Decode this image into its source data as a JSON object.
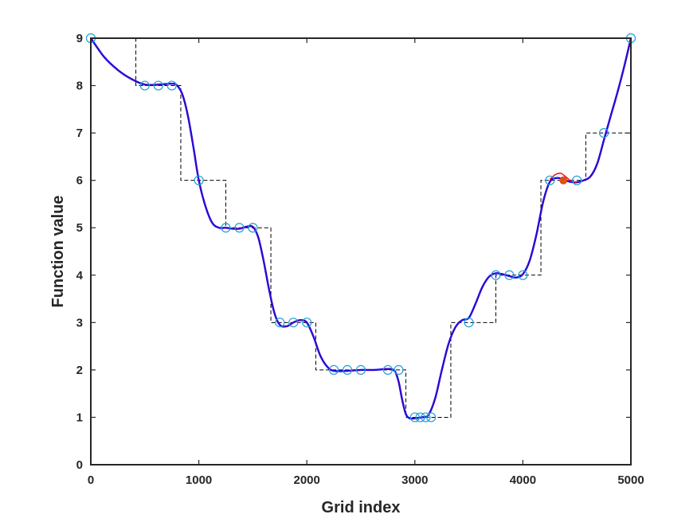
{
  "chart_data": {
    "type": "line",
    "title": "",
    "xlabel": "Grid index",
    "ylabel": "Function value",
    "xlim": [
      0,
      5000
    ],
    "ylim": [
      0,
      9
    ],
    "xticks": [
      0,
      1000,
      2000,
      3000,
      4000,
      5000
    ],
    "yticks": [
      0,
      1,
      2,
      3,
      4,
      5,
      6,
      7,
      8,
      9
    ],
    "grid": false,
    "legend": "none",
    "colors": {
      "axes": "#262626",
      "staircase": "#000000",
      "fit_blue": "#0000ff",
      "fit_red": "#ff0000",
      "markers": "#1f9fd6",
      "highlight_point": "#d95319"
    },
    "series": [
      {
        "role": "staircase",
        "style": "dashed-black",
        "steps": [
          [
            0,
            417,
            9
          ],
          [
            417,
            833,
            8
          ],
          [
            833,
            1250,
            6
          ],
          [
            1250,
            1667,
            5
          ],
          [
            1667,
            2083,
            3
          ],
          [
            2083,
            2917,
            2
          ],
          [
            2917,
            3333,
            1
          ],
          [
            3333,
            3750,
            3
          ],
          [
            3750,
            4167,
            4
          ],
          [
            4167,
            4583,
            6
          ],
          [
            4583,
            5000,
            7
          ]
        ]
      },
      {
        "role": "smooth-fit-blue",
        "style": "solid-blue",
        "x": [
          0,
          125,
          250,
          375,
          500,
          625,
          750,
          800,
          850,
          900,
          950,
          1000,
          1062,
          1125,
          1188,
          1250,
          1312,
          1375,
          1438,
          1500,
          1550,
          1600,
          1650,
          1700,
          1750,
          1812,
          1875,
          1938,
          2000,
          2062,
          2125,
          2188,
          2250,
          2375,
          2500,
          2625,
          2750,
          2812,
          2850,
          2880,
          2915,
          2950,
          3000,
          3062,
          3125,
          3188,
          3250,
          3312,
          3375,
          3438,
          3500,
          3562,
          3625,
          3688,
          3750,
          3812,
          3875,
          3938,
          4000,
          4062,
          4125,
          4188,
          4250,
          4312,
          4375,
          4438,
          4500,
          4562,
          4625,
          4688,
          4750,
          4812,
          4875,
          4938,
          5000
        ],
        "y": [
          9,
          8.6,
          8.33,
          8.14,
          8.02,
          8.02,
          8.04,
          8.0,
          7.8,
          7.35,
          6.7,
          6.0,
          5.45,
          5.1,
          5.0,
          5.0,
          4.98,
          4.98,
          5.02,
          5.02,
          4.8,
          4.3,
          3.7,
          3.2,
          2.95,
          2.92,
          3.0,
          3.05,
          3.0,
          2.7,
          2.3,
          2.07,
          1.98,
          1.98,
          2.0,
          2.0,
          2.02,
          1.98,
          1.75,
          1.4,
          1.08,
          0.98,
          0.98,
          1.0,
          1.05,
          1.4,
          2.0,
          2.55,
          2.9,
          3.05,
          3.1,
          3.4,
          3.75,
          3.97,
          4.04,
          4.02,
          3.98,
          3.95,
          4.02,
          4.3,
          4.85,
          5.55,
          5.97,
          6.05,
          6.02,
          5.97,
          5.96,
          6.0,
          6.08,
          6.35,
          6.85,
          7.35,
          7.85,
          8.4,
          9
        ]
      },
      {
        "role": "smooth-fit-red",
        "style": "solid-red",
        "x": [
          4250,
          4300,
          4350,
          4400,
          4450,
          4500
        ],
        "y": [
          6.02,
          6.12,
          6.15,
          6.07,
          5.98,
          5.96
        ]
      },
      {
        "role": "sample-markers",
        "style": "open-circles",
        "x": [
          0,
          500,
          625,
          750,
          1000,
          1250,
          1375,
          1500,
          1750,
          1875,
          2000,
          2250,
          2375,
          2500,
          2750,
          2850,
          3000,
          3050,
          3100,
          3150,
          3500,
          3750,
          3875,
          4000,
          4250,
          4500,
          4750,
          5000
        ],
        "y": [
          9,
          8,
          8,
          8,
          6,
          5,
          5,
          5,
          3,
          3,
          3,
          2,
          2,
          2,
          2,
          2,
          1,
          1,
          1,
          1,
          3,
          4,
          4,
          4,
          6,
          6,
          7,
          9
        ]
      },
      {
        "role": "highlight-point",
        "style": "filled-orange",
        "x": [
          4375
        ],
        "y": [
          6
        ]
      }
    ]
  }
}
